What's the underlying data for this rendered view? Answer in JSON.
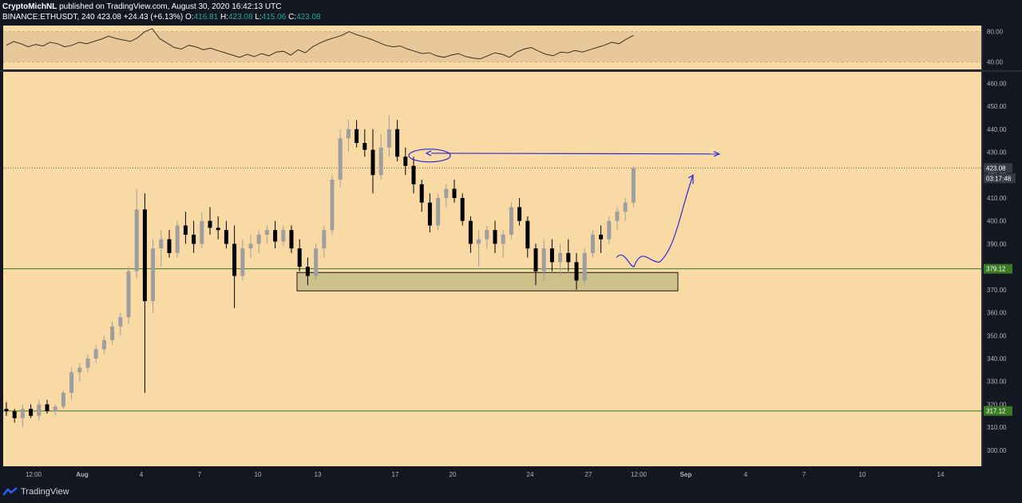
{
  "header": {
    "author": "CryptoMichNL",
    "published": "published on TradingView.com, August 30, 2020 16:42:13 UTC",
    "symbol": "BINANCE:ETHUSDT, 240",
    "last": "423.08",
    "change": "+24.43 (+6.13%)",
    "o_label": "O:",
    "o": "416.81",
    "h_label": "H:",
    "h": "423.08",
    "l_label": "L:",
    "l": "415.06",
    "c_label": "C:",
    "c": "423.08"
  },
  "footer": {
    "brand": "TradingView"
  },
  "colors": {
    "background": "#131722",
    "pane": "#f9d9a4",
    "candle": "#9e9e9e",
    "candle_down": "#000000",
    "support": "#3a7a25",
    "zone_fill": "#cdc08a",
    "drawing": "#2b2bd6",
    "rsi_band": "#e8c89a"
  },
  "chart_data": {
    "type": "candlestick",
    "x_ticks": [
      "12:00",
      "Aug",
      "4",
      "7",
      "10",
      "13",
      "17",
      "20",
      "24",
      "27",
      "12:00",
      "Sep",
      "4",
      "7",
      "10",
      "14"
    ],
    "y_ticks": [
      "460.00",
      "450.00",
      "440.00",
      "430.00",
      "420.00",
      "410.00",
      "400.00",
      "390.00",
      "380.00",
      "370.00",
      "360.00",
      "350.00",
      "340.00",
      "330.00",
      "320.00",
      "310.00",
      "300.00"
    ],
    "ylim": [
      293,
      465
    ],
    "rsi": {
      "y_ticks": [
        "80.00",
        "40.00"
      ],
      "band": [
        40,
        80
      ],
      "values": [
        62,
        67,
        64,
        60,
        63,
        61,
        66,
        64,
        60,
        62,
        66,
        64,
        67,
        70,
        74,
        71,
        69,
        67,
        72,
        80,
        84,
        71,
        65,
        59,
        57,
        62,
        60,
        56,
        58,
        55,
        52,
        49,
        46,
        50,
        47,
        51,
        48,
        53,
        54,
        49,
        56,
        52,
        60,
        65,
        69,
        72,
        75,
        80,
        76,
        73,
        70,
        66,
        62,
        60,
        61,
        57,
        54,
        51,
        52,
        48,
        46,
        49,
        51,
        47,
        45,
        44,
        48,
        52,
        50,
        46,
        53,
        57,
        59,
        54,
        50,
        48,
        53,
        52,
        55,
        53,
        56,
        59,
        62,
        66,
        64,
        70,
        75
      ]
    },
    "series": [
      {
        "values": [
          [
            318,
            321,
            315,
            317
          ],
          [
            317,
            318,
            312,
            314
          ],
          [
            314,
            320,
            310,
            318
          ],
          [
            318,
            320,
            314,
            315
          ],
          [
            315,
            322,
            313,
            320
          ],
          [
            320,
            322,
            316,
            317
          ],
          [
            317,
            320,
            315,
            319
          ],
          [
            319,
            326,
            318,
            325
          ],
          [
            325,
            336,
            322,
            334
          ],
          [
            334,
            338,
            330,
            336
          ],
          [
            336,
            342,
            334,
            340
          ],
          [
            340,
            346,
            338,
            344
          ],
          [
            344,
            350,
            342,
            348
          ],
          [
            348,
            356,
            346,
            354
          ],
          [
            354,
            360,
            350,
            358
          ],
          [
            358,
            380,
            355,
            378
          ],
          [
            378,
            414,
            375,
            405
          ],
          [
            405,
            412,
            325,
            365
          ],
          [
            365,
            392,
            360,
            388
          ],
          [
            388,
            396,
            380,
            392
          ],
          [
            392,
            396,
            384,
            386
          ],
          [
            386,
            400,
            384,
            398
          ],
          [
            398,
            404,
            390,
            394
          ],
          [
            394,
            400,
            386,
            390
          ],
          [
            390,
            404,
            388,
            400
          ],
          [
            400,
            406,
            394,
            397
          ],
          [
            397,
            402,
            392,
            396
          ],
          [
            396,
            400,
            388,
            390
          ],
          [
            390,
            398,
            362,
            376
          ],
          [
            376,
            392,
            374,
            388
          ],
          [
            388,
            394,
            384,
            390
          ],
          [
            390,
            396,
            386,
            394
          ],
          [
            394,
            398,
            390,
            396
          ],
          [
            396,
            400,
            388,
            391
          ],
          [
            391,
            398,
            389,
            396
          ],
          [
            396,
            398,
            386,
            388
          ],
          [
            388,
            392,
            378,
            380
          ],
          [
            380,
            384,
            372,
            376
          ],
          [
            376,
            390,
            374,
            388
          ],
          [
            388,
            398,
            384,
            396
          ],
          [
            396,
            420,
            394,
            418
          ],
          [
            418,
            440,
            415,
            436
          ],
          [
            436,
            444,
            430,
            440
          ],
          [
            440,
            444,
            432,
            434
          ],
          [
            434,
            440,
            428,
            431
          ],
          [
            431,
            440,
            412,
            420
          ],
          [
            420,
            438,
            418,
            432
          ],
          [
            432,
            446,
            428,
            440
          ],
          [
            440,
            444,
            426,
            428
          ],
          [
            428,
            432,
            420,
            424
          ],
          [
            424,
            428,
            412,
            416
          ],
          [
            416,
            418,
            404,
            408
          ],
          [
            408,
            412,
            395,
            398
          ],
          [
            398,
            412,
            396,
            410
          ],
          [
            410,
            416,
            406,
            414
          ],
          [
            414,
            418,
            408,
            410
          ],
          [
            410,
            412,
            398,
            400
          ],
          [
            400,
            402,
            386,
            390
          ],
          [
            390,
            396,
            380,
            392
          ],
          [
            392,
            398,
            388,
            396
          ],
          [
            396,
            400,
            386,
            390
          ],
          [
            390,
            396,
            384,
            394
          ],
          [
            394,
            408,
            392,
            406
          ],
          [
            406,
            410,
            398,
            400
          ],
          [
            400,
            402,
            384,
            388
          ],
          [
            388,
            390,
            372,
            378
          ],
          [
            378,
            392,
            374,
            388
          ],
          [
            388,
            392,
            378,
            382
          ],
          [
            382,
            390,
            376,
            386
          ],
          [
            386,
            392,
            378,
            382
          ],
          [
            382,
            386,
            370,
            374
          ],
          [
            374,
            388,
            372,
            386
          ],
          [
            386,
            396,
            384,
            394
          ],
          [
            394,
            398,
            386,
            392
          ],
          [
            392,
            402,
            390,
            400
          ],
          [
            400,
            406,
            396,
            404
          ],
          [
            404,
            410,
            400,
            408
          ],
          [
            408,
            424,
            406,
            423
          ]
        ]
      }
    ],
    "levels": [
      {
        "label": "379.12",
        "value": 379.12
      },
      {
        "label": "317.12",
        "value": 317.12
      }
    ],
    "last_price": {
      "label": "423.08",
      "value": 423.08,
      "countdown": "03:17:48"
    },
    "zone": {
      "from": 369.5,
      "to": 377.5
    }
  }
}
